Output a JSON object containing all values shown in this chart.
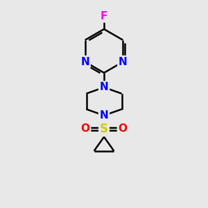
{
  "bg_color": "#e8e8e8",
  "bond_color": "#000000",
  "N_color": "#0000ff",
  "F_color": "#ff00ff",
  "S_color": "#cccc00",
  "O_color": "#ff0000",
  "line_width": 1.8,
  "font_size_atom": 11,
  "figsize": [
    3.0,
    3.0
  ],
  "dpi": 100,
  "xlim": [
    0,
    10
  ],
  "ylim": [
    0,
    10
  ]
}
